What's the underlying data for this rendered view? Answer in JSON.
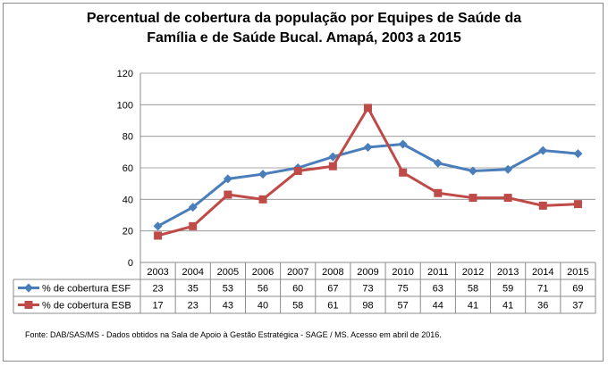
{
  "chart_data": {
    "type": "line",
    "title_line1": "Percentual de cobertura da população por Equipes de Saúde da",
    "title_line2": "Família e de Saúde Bucal. Amapá, 2003 a 2015",
    "categories": [
      "2003",
      "2004",
      "2005",
      "2006",
      "2007",
      "2008",
      "2009",
      "2010",
      "2011",
      "2012",
      "2013",
      "2014",
      "2015"
    ],
    "series": [
      {
        "name": "% de cobertura ESF",
        "color": "#4a7ebb",
        "marker": "diamond",
        "values": [
          23,
          35,
          53,
          56,
          60,
          67,
          73,
          75,
          63,
          58,
          59,
          71,
          69
        ],
        "plot": [
          23,
          35,
          53,
          56,
          60,
          67,
          73,
          75,
          63,
          58,
          59,
          71,
          69
        ]
      },
      {
        "name": "% de cobertura ESB",
        "color": "#be4b48",
        "marker": "square",
        "values": [
          17,
          23,
          43,
          40,
          58,
          61,
          98,
          57,
          44,
          41,
          41,
          36,
          37
        ],
        "plot": [
          17,
          23,
          43,
          40,
          58,
          61,
          98,
          57,
          44,
          41,
          41,
          36,
          37
        ]
      }
    ],
    "ylim": [
      0,
      120
    ],
    "yticks": [
      "0",
      "20",
      "40",
      "60",
      "80",
      "100",
      "120"
    ],
    "grid": true,
    "legend": "data-table"
  },
  "source": "Fonte:  DAB/SAS/MS - Dados obtidos na Sala de Apoio à Gestão Estratégica - SAGE / MS. Acesso em abril  de 2016."
}
